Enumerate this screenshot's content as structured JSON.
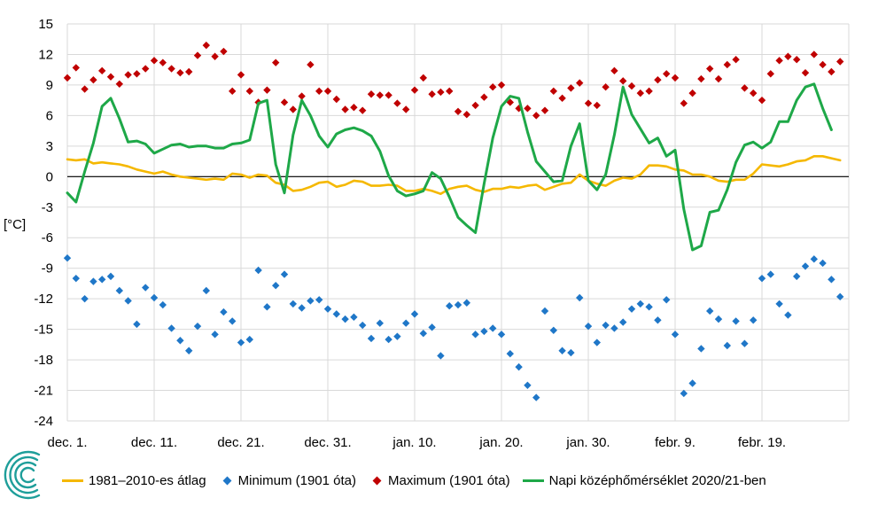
{
  "chart_data": {
    "type": "line",
    "ylabel": "[°C]",
    "ylim": [
      -24,
      15
    ],
    "yticks": [
      15,
      12,
      9,
      6,
      3,
      0,
      -3,
      -6,
      -9,
      -12,
      -15,
      -18,
      -21,
      -24
    ],
    "xrange": [
      0,
      90
    ],
    "xticks": [
      {
        "day": 0,
        "label": "dec. 1."
      },
      {
        "day": 10,
        "label": "dec. 11."
      },
      {
        "day": 20,
        "label": "dec. 21."
      },
      {
        "day": 30,
        "label": "dec. 31."
      },
      {
        "day": 40,
        "label": "jan. 10."
      },
      {
        "day": 50,
        "label": "jan. 20."
      },
      {
        "day": 60,
        "label": "jan. 30."
      },
      {
        "day": 70,
        "label": "febr. 9."
      },
      {
        "day": 80,
        "label": "febr. 19."
      }
    ],
    "zero_line": true,
    "series": [
      {
        "name": "1981–2010-es átlag",
        "style": "line",
        "color": "#F5B800",
        "values": [
          1.7,
          1.6,
          1.7,
          1.3,
          1.4,
          1.3,
          1.2,
          1.0,
          0.7,
          0.5,
          0.3,
          0.5,
          0.2,
          0.0,
          -0.1,
          -0.2,
          -0.3,
          -0.2,
          -0.3,
          0.3,
          0.2,
          -0.1,
          0.2,
          0.1,
          -0.6,
          -0.8,
          -1.4,
          -1.3,
          -1.0,
          -0.6,
          -0.5,
          -1.0,
          -0.8,
          -0.4,
          -0.5,
          -0.9,
          -0.9,
          -0.8,
          -0.9,
          -1.4,
          -1.4,
          -1.2,
          -1.4,
          -1.7,
          -1.2,
          -1.0,
          -0.9,
          -1.3,
          -1.5,
          -1.2,
          -1.2,
          -1.0,
          -1.1,
          -0.9,
          -0.8,
          -1.3,
          -1.0,
          -0.7,
          -0.6,
          0.2,
          -0.4,
          -0.7,
          -0.9,
          -0.4,
          -0.1,
          -0.2,
          0.2,
          1.1,
          1.1,
          1.0,
          0.7,
          0.6,
          0.2,
          0.2,
          0.0,
          -0.4,
          -0.5,
          -0.3,
          -0.3,
          0.3,
          1.2,
          1.1,
          1.0,
          1.2,
          1.5,
          1.6,
          2.0,
          2.0,
          1.8,
          1.6
        ]
      },
      {
        "name": "Minimum (1901 óta)",
        "style": "marker",
        "color": "#1F77C8",
        "values": [
          -8.0,
          -10.0,
          -12.0,
          -10.3,
          -10.1,
          -9.8,
          -11.2,
          -12.2,
          -14.5,
          -10.9,
          -11.9,
          -12.6,
          -14.9,
          -16.1,
          -17.1,
          -14.7,
          -11.2,
          -15.5,
          -13.3,
          -14.2,
          -16.3,
          -16.0,
          -9.2,
          -12.8,
          -10.7,
          -9.6,
          -12.5,
          -12.9,
          -12.2,
          -12.1,
          -13.0,
          -13.5,
          -14.0,
          -13.8,
          -14.6,
          -15.9,
          -14.4,
          -16.0,
          -15.7,
          -14.4,
          -13.5,
          -15.4,
          -14.8,
          -17.6,
          -12.7,
          -12.6,
          -12.4,
          -15.5,
          -15.2,
          -14.9,
          -15.5,
          -17.4,
          -18.7,
          -20.5,
          -21.7,
          -13.2,
          -15.1,
          -17.1,
          -17.3,
          -11.9,
          -14.7,
          -16.3,
          -14.6,
          -14.9,
          -14.3,
          -13.0,
          -12.5,
          -12.8,
          -14.1,
          -12.1,
          -15.5,
          -21.3,
          -20.3,
          -16.9,
          -13.2,
          -14.0,
          -16.6,
          -14.2,
          -16.4,
          -14.1,
          -10.0,
          -9.6,
          -12.5,
          -13.6,
          -9.8,
          -8.8,
          -8.1,
          -8.5,
          -10.1,
          -11.8
        ]
      },
      {
        "name": "Maximum (1901 óta)",
        "style": "marker",
        "color": "#C00000",
        "values": [
          9.7,
          10.7,
          8.6,
          9.5,
          10.4,
          9.8,
          9.1,
          10.0,
          10.1,
          10.6,
          11.4,
          11.2,
          10.6,
          10.2,
          10.3,
          11.9,
          12.9,
          11.8,
          12.3,
          8.4,
          10.0,
          8.4,
          7.3,
          8.5,
          11.2,
          7.3,
          6.6,
          7.9,
          11.0,
          8.4,
          8.4,
          7.6,
          6.6,
          6.8,
          6.5,
          8.1,
          8.0,
          8.0,
          7.2,
          6.6,
          8.5,
          9.7,
          8.1,
          8.3,
          8.4,
          6.4,
          6.1,
          7.0,
          7.8,
          8.8,
          9.0,
          7.3,
          6.7,
          6.7,
          6.0,
          6.5,
          8.4,
          7.7,
          8.7,
          9.2,
          7.2,
          7.0,
          8.8,
          10.4,
          9.4,
          8.9,
          8.2,
          8.4,
          9.5,
          10.1,
          9.7,
          7.2,
          8.2,
          9.6,
          10.6,
          9.6,
          11.0,
          11.5,
          8.7,
          8.2,
          7.5,
          10.1,
          11.4,
          11.8,
          11.5,
          10.2,
          12.0,
          11.0,
          10.3,
          11.3
        ]
      },
      {
        "name": "Napi középhőmérséklet 2020/21-ben",
        "style": "line",
        "color": "#1EA848",
        "values": [
          -1.6,
          -2.5,
          0.5,
          3.3,
          6.9,
          7.7,
          5.7,
          3.4,
          3.5,
          3.2,
          2.3,
          2.7,
          3.1,
          3.2,
          2.9,
          3.0,
          3.0,
          2.8,
          2.8,
          3.2,
          3.3,
          3.6,
          7.2,
          7.5,
          1.2,
          -1.6,
          4.1,
          7.5,
          6.0,
          4.0,
          2.9,
          4.2,
          4.6,
          4.8,
          4.5,
          4.0,
          2.5,
          0.1,
          -1.4,
          -1.9,
          -1.7,
          -1.4,
          0.4,
          -0.2,
          -2.0,
          -4.0,
          -4.8,
          -5.5,
          -0.7,
          3.8,
          6.9,
          7.9,
          7.7,
          4.4,
          1.5,
          0.5,
          -0.5,
          -0.4,
          3.0,
          5.2,
          -0.4,
          -1.3,
          0.2,
          4.1,
          8.8,
          6.1,
          4.7,
          3.3,
          3.8,
          2.0,
          2.6,
          -3.2,
          -7.2,
          -6.8,
          -3.5,
          -3.3,
          -1.3,
          1.4,
          3.1,
          3.4,
          2.8,
          3.4,
          5.4,
          5.4,
          7.5,
          8.8,
          9.1,
          6.7,
          4.6
        ]
      }
    ]
  },
  "colors": {
    "gridline": "#D9D9D9",
    "axis": "#000000",
    "logo": "#1E9E9A"
  },
  "logo_icon": "omsz-circular-logo"
}
